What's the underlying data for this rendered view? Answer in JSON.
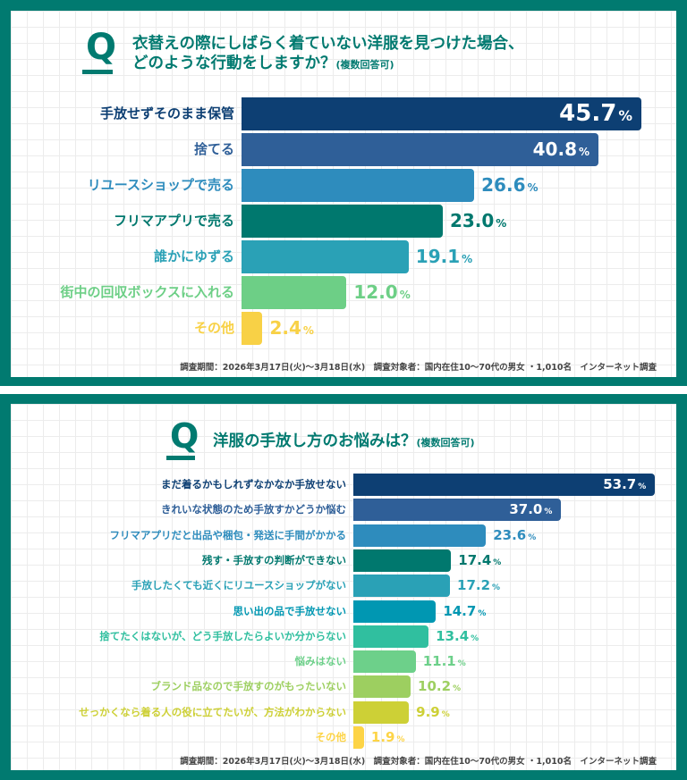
{
  "chart_data": [
    {
      "type": "bar",
      "orientation": "horizontal",
      "q_mark": "Q",
      "title": "衣替えの際にしばらく着ていない洋服を見つけた場合、",
      "title_line2": "どのような行動をしますか？",
      "title_note": "(複数回答可)",
      "unit": "%",
      "categories": [
        "手放せずそのまま保管",
        "捨てる",
        "リユースショップで売る",
        "フリマアプリで売る",
        "誰かにゆずる",
        "街中の回収ボックスに入れる",
        "その他"
      ],
      "values": [
        45.7,
        40.8,
        26.6,
        23.0,
        19.1,
        12.0,
        2.4
      ],
      "value_labels": [
        "45.7",
        "40.8",
        "26.6",
        "23.0",
        "19.1",
        "12.0",
        "2.4"
      ],
      "colors": [
        "#0d3f73",
        "#2f5f98",
        "#2e8cbd",
        "#00786e",
        "#2aa1b6",
        "#6dcf86",
        "#f8d146"
      ],
      "footer": "調査期間：2026年3月17日(火)〜3月18日(水)　調査対象者：国内在住10〜70代の男女 ・1,010名　インターネット調査"
    },
    {
      "type": "bar",
      "orientation": "horizontal",
      "q_mark": "Q",
      "title": "洋服の手放し方のお悩みは？",
      "title_note": "(複数回答可)",
      "unit": "%",
      "categories": [
        "まだ着るかもしれずなかなか手放せない",
        "きれいな状態のため手放すかどうか悩む",
        "フリマアプリだと出品や梱包・発送に手間がかかる",
        "残す・手放すの判断ができない",
        "手放したくても近くにリユースショップがない",
        "思い出の品で手放せない",
        "捨てたくはないが、どう手放したらよいか分からない",
        "悩みはない",
        "ブランド品なので手放すのがもったいない",
        "せっかくなら着る人の役に立てたいが、方法がわからない",
        "その他"
      ],
      "values": [
        53.7,
        37.0,
        23.6,
        17.4,
        17.2,
        14.7,
        13.4,
        11.1,
        10.2,
        9.9,
        1.9
      ],
      "value_labels": [
        "53.7",
        "37.0",
        "23.6",
        "17.4",
        "17.2",
        "14.7",
        "13.4",
        "11.1",
        "10.2",
        "9.9",
        "1.9"
      ],
      "colors": [
        "#0d3f73",
        "#2f5f98",
        "#2e8cbd",
        "#00786e",
        "#2aa1b6",
        "#0097b2",
        "#30bf9f",
        "#6dd08a",
        "#9dcf60",
        "#cdd036",
        "#fdd446"
      ],
      "footer": "調査期間：2026年3月17日(火)〜3月18日(水)　調査対象者：国内在住10〜70代の男女 ・1,010名　インターネット調査"
    }
  ]
}
